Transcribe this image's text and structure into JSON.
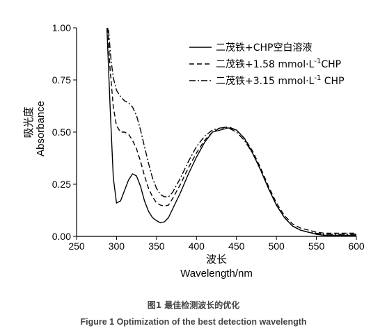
{
  "chart_data": {
    "type": "line",
    "xlabel": "Wavelength/nm",
    "xlabel_cn": "波长",
    "ylabel": "Absorbance",
    "ylabel_cn": "吸光度",
    "xlim": [
      250,
      600
    ],
    "ylim": [
      0,
      1.0
    ],
    "xticks": [
      "250",
      "300",
      "350",
      "400",
      "450",
      "500",
      "550",
      "600"
    ],
    "yticks": [
      "0.00",
      "0.25",
      "0.50",
      "0.75",
      "1.00"
    ],
    "grid": false,
    "legend_position": "top-right",
    "series": [
      {
        "name": "二茂铁+CHP空白溶液",
        "style": "solid",
        "x": [
          288,
          292,
          296,
          300,
          305,
          310,
          315,
          320,
          325,
          330,
          335,
          340,
          345,
          350,
          355,
          360,
          365,
          370,
          380,
          390,
          400,
          410,
          420,
          430,
          440,
          450,
          460,
          470,
          480,
          490,
          500,
          510,
          520,
          530,
          540,
          550,
          560,
          580,
          600
        ],
        "y": [
          1.0,
          0.62,
          0.28,
          0.16,
          0.17,
          0.22,
          0.27,
          0.3,
          0.29,
          0.24,
          0.17,
          0.12,
          0.09,
          0.075,
          0.065,
          0.07,
          0.09,
          0.13,
          0.21,
          0.3,
          0.38,
          0.45,
          0.5,
          0.51,
          0.52,
          0.51,
          0.47,
          0.4,
          0.32,
          0.23,
          0.15,
          0.09,
          0.05,
          0.03,
          0.02,
          0.01,
          0.005,
          0.005,
          0.005
        ]
      },
      {
        "name": "二茂铁+1.58 mmol·L-1CHP",
        "style": "dashed",
        "x": [
          289,
          292,
          296,
          300,
          305,
          310,
          315,
          320,
          325,
          330,
          335,
          340,
          345,
          350,
          355,
          360,
          365,
          370,
          380,
          390,
          400,
          410,
          420,
          430,
          440,
          450,
          460,
          470,
          480,
          490,
          500,
          510,
          520,
          530,
          540,
          550,
          560,
          580,
          600
        ],
        "y": [
          1.0,
          0.8,
          0.62,
          0.53,
          0.5,
          0.5,
          0.49,
          0.46,
          0.42,
          0.36,
          0.29,
          0.23,
          0.19,
          0.16,
          0.15,
          0.145,
          0.15,
          0.18,
          0.25,
          0.33,
          0.4,
          0.46,
          0.5,
          0.52,
          0.525,
          0.51,
          0.47,
          0.41,
          0.33,
          0.24,
          0.16,
          0.1,
          0.06,
          0.04,
          0.03,
          0.02,
          0.015,
          0.015,
          0.015
        ]
      },
      {
        "name": "二茂铁+3.15 mmol·L-1 CHP",
        "style": "dashdot",
        "x": [
          290,
          293,
          296,
          300,
          305,
          310,
          315,
          320,
          325,
          330,
          335,
          340,
          345,
          350,
          355,
          360,
          365,
          370,
          380,
          390,
          400,
          410,
          420,
          430,
          440,
          450,
          460,
          470,
          480,
          490,
          500,
          510,
          520,
          530,
          540,
          550,
          560,
          580,
          600
        ],
        "y": [
          0.99,
          0.85,
          0.76,
          0.7,
          0.67,
          0.65,
          0.64,
          0.62,
          0.58,
          0.51,
          0.43,
          0.35,
          0.28,
          0.23,
          0.2,
          0.19,
          0.19,
          0.21,
          0.28,
          0.36,
          0.43,
          0.48,
          0.51,
          0.52,
          0.52,
          0.5,
          0.46,
          0.4,
          0.32,
          0.23,
          0.15,
          0.09,
          0.05,
          0.03,
          0.02,
          0.015,
          0.01,
          0.01,
          0.01
        ]
      }
    ]
  },
  "legend": {
    "items": [
      {
        "prefix": "二茂铁+CHP空白溶液",
        "sup": "",
        "suffix": ""
      },
      {
        "prefix": "二茂铁+1.58 mmol·L",
        "sup": "-1",
        "suffix": "CHP"
      },
      {
        "prefix": "二茂铁+3.15 mmol·L",
        "sup": "-1",
        "suffix": " CHP"
      }
    ]
  },
  "captions": {
    "cn": "图1 最佳检测波长的优化",
    "en": "Figure 1 Optimization of the best detection wavelength"
  }
}
